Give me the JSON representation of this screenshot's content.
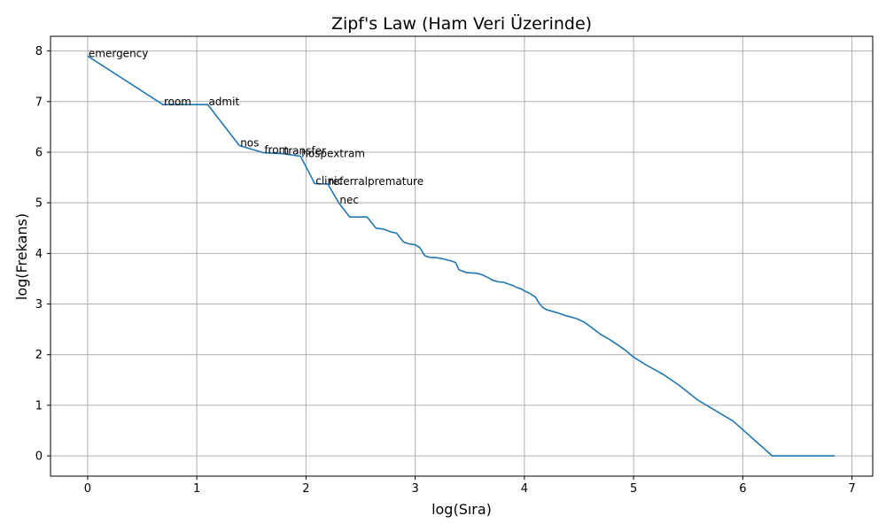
{
  "chart_data": {
    "type": "line",
    "title": "Zipf's Law (Ham Veri Üzerinde)",
    "xlabel": "log(Sıra)",
    "ylabel": "log(Frekans)",
    "xlim": [
      -0.34,
      7.19
    ],
    "ylim": [
      -0.4,
      8.29
    ],
    "xticks": [
      0,
      1,
      2,
      3,
      4,
      5,
      6,
      7
    ],
    "yticks": [
      0,
      1,
      2,
      3,
      4,
      5,
      6,
      7,
      8
    ],
    "grid": true,
    "color": "#1f77b4",
    "series": [
      {
        "x": [
          0,
          0.69,
          1.1,
          1.39,
          1.61,
          1.79,
          1.95,
          2.08,
          2.2,
          2.3,
          2.4,
          2.56,
          2.64,
          2.71,
          2.77,
          2.83,
          2.89,
          2.94,
          3.0,
          3.04,
          3.09,
          3.14,
          3.18,
          3.26,
          3.33,
          3.37,
          3.4,
          3.47,
          3.56,
          3.61,
          3.66,
          3.71,
          3.76,
          3.81,
          3.85,
          3.89,
          3.93,
          3.97,
          4.0,
          4.04,
          4.07,
          4.1,
          4.14,
          4.17,
          4.2,
          4.3,
          4.38,
          4.48,
          4.55,
          4.6,
          4.65,
          4.7,
          4.78,
          4.85,
          4.93,
          5.0,
          5.12,
          5.27,
          5.42,
          5.59,
          5.91,
          6.27,
          6.84
        ],
        "y": [
          7.9,
          6.94,
          6.94,
          6.13,
          5.99,
          5.97,
          5.92,
          5.38,
          5.37,
          5.0,
          4.72,
          4.72,
          4.5,
          4.48,
          4.43,
          4.4,
          4.23,
          4.19,
          4.17,
          4.12,
          3.95,
          3.92,
          3.92,
          3.89,
          3.85,
          3.82,
          3.68,
          3.62,
          3.61,
          3.58,
          3.53,
          3.47,
          3.44,
          3.43,
          3.4,
          3.37,
          3.33,
          3.3,
          3.26,
          3.22,
          3.18,
          3.14,
          3.0,
          2.93,
          2.89,
          2.83,
          2.77,
          2.71,
          2.64,
          2.56,
          2.48,
          2.4,
          2.3,
          2.2,
          2.08,
          1.95,
          1.79,
          1.61,
          1.39,
          1.1,
          0.69,
          0.0,
          0.0
        ]
      }
    ],
    "annotations": [
      {
        "text": "emergency",
        "x": 0.0,
        "y": 7.9
      },
      {
        "text": "room",
        "x": 0.69,
        "y": 6.94
      },
      {
        "text": "admit",
        "x": 1.1,
        "y": 6.94
      },
      {
        "text": "nos",
        "x": 1.39,
        "y": 6.13
      },
      {
        "text": "from",
        "x": 1.61,
        "y": 5.99
      },
      {
        "text": "transfer",
        "x": 1.79,
        "y": 5.97
      },
      {
        "text": "hospextram",
        "x": 1.95,
        "y": 5.92
      },
      {
        "text": "clinic",
        "x": 2.08,
        "y": 5.38
      },
      {
        "text": "referralpremature",
        "x": 2.2,
        "y": 5.37
      },
      {
        "text": "nec",
        "x": 2.3,
        "y": 5.0
      }
    ]
  }
}
